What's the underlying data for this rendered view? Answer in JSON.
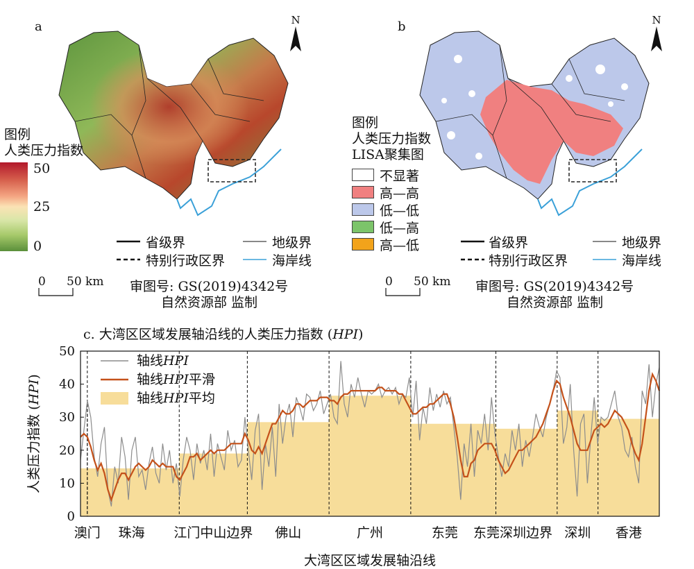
{
  "panel_a": {
    "letter": "a",
    "north": "N",
    "legend_title_line1": "图例",
    "legend_title_line2": "人类压力指数",
    "colorbar_max": "50",
    "colorbar_mid": "25",
    "colorbar_min": "0",
    "colorbar_colors": [
      "#b2182b",
      "#d6604d",
      "#f4a582",
      "#fbe3b5",
      "#d9e6a8",
      "#a6c96a",
      "#5a8f3a"
    ],
    "boundary_legend": {
      "province": "省级界",
      "prefecture": "地级界",
      "sar": "特别行政区界",
      "coast": "海岸线"
    },
    "scale_zero": "0",
    "scale_label": "50 km",
    "map_number": "审图号: GS(2019)4342号",
    "supervisor": "自然资源部 监制"
  },
  "panel_b": {
    "letter": "b",
    "north": "N",
    "legend_title_line1": "图例",
    "legend_title_line2": "人类压力指数",
    "legend_title_line3": "LISA聚集图",
    "classes": [
      {
        "label": "不显著",
        "color": "#ffffff"
      },
      {
        "label": "高—高",
        "color": "#f08080"
      },
      {
        "label": "低—低",
        "color": "#bcc8ea"
      },
      {
        "label": "低—高",
        "color": "#7cc46a"
      },
      {
        "label": "高—低",
        "color": "#f2a31b"
      }
    ],
    "boundary_legend": {
      "province": "省级界",
      "prefecture": "地级界",
      "sar": "特别行政区界",
      "coast": "海岸线"
    },
    "scale_zero": "0",
    "scale_label": "50 km",
    "map_number": "审图号: GS(2019)4342号",
    "supervisor": "自然资源部 监制"
  },
  "chart_data": {
    "type": "line",
    "title": "c. 大湾区区域发展轴沿线的人类压力指数 (HPI)",
    "title_prefix": "c. 大湾区区域发展轴沿线的人类压力指数 (",
    "title_em": "HPI",
    "title_suffix": ")",
    "ylabel_prefix": "人类压力指数 (",
    "ylabel_em": "HPI",
    "ylabel_suffix": ")",
    "xlabel": "大湾区区域发展轴沿线",
    "ylim": [
      0,
      50
    ],
    "yticks": [
      "0",
      "10",
      "20",
      "30",
      "40",
      "50"
    ],
    "x_range": [
      0,
      170
    ],
    "legend": {
      "raw_prefix": "轴线",
      "raw_em": "HPI",
      "raw_suffix": "",
      "smooth_prefix": "轴线",
      "smooth_em": "HPI",
      "smooth_suffix": "平滑",
      "mean_prefix": "轴线",
      "mean_em": "HPI",
      "mean_suffix": "平均"
    },
    "colors": {
      "raw": "#8c8c8c",
      "smooth": "#c4511a",
      "mean": "#f7dd9a"
    },
    "segments": [
      {
        "name": "澳门",
        "start": 0,
        "end": 2,
        "mean": 14.5,
        "label_x": 2
      },
      {
        "name": "珠海",
        "start": 2,
        "end": 29,
        "mean": 14.5,
        "label_x": 15
      },
      {
        "name": "江门中山边界",
        "start": 29,
        "end": 49,
        "mean": 19.0,
        "label_x": 39
      },
      {
        "name": "佛山",
        "start": 49,
        "end": 73,
        "mean": 28.5,
        "label_x": 61
      },
      {
        "name": "广州",
        "start": 73,
        "end": 97,
        "mean": 36.5,
        "label_x": 85
      },
      {
        "name": "东莞",
        "start": 97,
        "end": 122,
        "mean": 28.0,
        "label_x": 107
      },
      {
        "name": "东莞深圳边界",
        "start": 122,
        "end": 140,
        "mean": 26.5,
        "label_x": 127
      },
      {
        "name": "深圳",
        "start": 140,
        "end": 152,
        "mean": 32.0,
        "label_x": 146
      },
      {
        "name": "香港",
        "start": 152,
        "end": 170,
        "mean": 29.5,
        "label_x": 161
      }
    ],
    "raw_hpi": [
      17,
      26,
      35,
      30,
      18,
      12,
      22,
      27,
      8,
      3,
      15,
      10,
      24,
      18,
      5,
      20,
      24,
      12,
      14,
      8,
      16,
      21,
      13,
      10,
      22,
      14,
      20,
      10,
      16,
      6,
      17,
      24,
      20,
      11,
      22,
      16,
      20,
      14,
      25,
      12,
      22,
      18,
      14,
      26,
      20,
      23,
      15,
      17,
      30,
      20,
      11,
      26,
      31,
      8,
      22,
      15,
      27,
      12,
      34,
      22,
      30,
      34,
      24,
      36,
      33,
      29,
      37,
      36,
      32,
      34,
      38,
      31,
      34,
      37,
      30,
      28,
      47,
      34,
      30,
      40,
      36,
      42,
      37,
      33,
      38,
      37,
      38,
      40,
      36,
      38,
      39,
      37,
      39,
      34,
      37,
      36,
      42,
      30,
      41,
      23,
      33,
      28,
      39,
      32,
      37,
      33,
      38,
      34,
      36,
      27,
      18,
      5,
      22,
      15,
      28,
      12,
      26,
      22,
      31,
      20,
      36,
      25,
      18,
      12,
      19,
      15,
      26,
      20,
      28,
      15,
      23,
      18,
      24,
      31,
      27,
      24,
      30,
      34,
      38,
      44,
      42,
      22,
      27,
      40,
      20,
      6,
      28,
      31,
      10,
      24,
      36,
      22,
      30,
      29,
      30,
      34,
      38,
      30,
      27,
      20,
      18,
      24,
      15,
      10,
      38,
      34,
      46,
      30,
      40,
      45
    ],
    "smooth_hpi": [
      24,
      25,
      24,
      21,
      17,
      14,
      16,
      13,
      8,
      5,
      8,
      11,
      13,
      13,
      11,
      13,
      15,
      16,
      15,
      14,
      15,
      17,
      16,
      15,
      16,
      15,
      15,
      15,
      12,
      11,
      13,
      15,
      18,
      18,
      19,
      17,
      18,
      19,
      20,
      19,
      20,
      20,
      20,
      21,
      22,
      22,
      22,
      22,
      25,
      23,
      20,
      19,
      21,
      19,
      22,
      25,
      28,
      28,
      30,
      32,
      31,
      31,
      32,
      34,
      34,
      33,
      34,
      35,
      35,
      35,
      36,
      36,
      36,
      35,
      35,
      34,
      36,
      37,
      37,
      38,
      38,
      38,
      38,
      38,
      38,
      38,
      38,
      39,
      39,
      38,
      38,
      38,
      38,
      37,
      37,
      35,
      33,
      31,
      31,
      32,
      33,
      33,
      34,
      34,
      35,
      36,
      37,
      37,
      34,
      30,
      24,
      17,
      12,
      12,
      16,
      17,
      20,
      21,
      22,
      22,
      22,
      20,
      17,
      15,
      13,
      14,
      16,
      18,
      20,
      20,
      21,
      22,
      23,
      24,
      26,
      28,
      31,
      34,
      38,
      41,
      40,
      36,
      33,
      30,
      26,
      22,
      20,
      20,
      20,
      23,
      26,
      27,
      28,
      27,
      28,
      30,
      32,
      31,
      30,
      28,
      26,
      22,
      19,
      17,
      22,
      30,
      38,
      43,
      41,
      38
    ]
  }
}
